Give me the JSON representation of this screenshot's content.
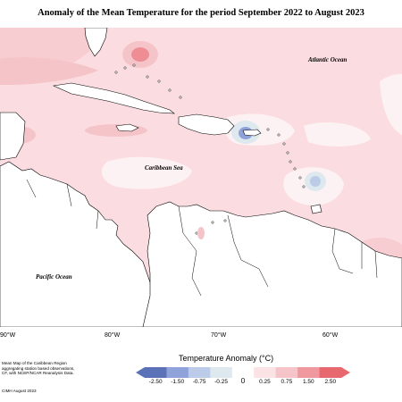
{
  "title": "Anomaly of the Mean Temperature for the period September 2022 to August 2023",
  "map_labels": {
    "atlantic": "Atlantic Ocean",
    "caribbean": "Caribbean Sea",
    "pacific": "Pacific Ocean"
  },
  "longitude_labels": [
    "90°W",
    "80°W",
    "70°W",
    "60°W"
  ],
  "notes": {
    "line1": "Mean Map of the Caribbean Region",
    "line2": "aggregating station based observations,",
    "line3": "CF, with NCEP/NCAR Reanalysis Data."
  },
  "stamp": "CIMH August 2023",
  "legend": {
    "title": "Temperature Anomaly (°C)",
    "ticks": [
      "-2.50",
      "-1.50",
      "-0.75",
      "-0.25",
      "0",
      "0.25",
      "0.75",
      "1.50",
      "2.50"
    ],
    "colors": [
      "#5b72b8",
      "#8fa3da",
      "#bccbe8",
      "#dde8ef",
      "#ffffff",
      "#fbe2e4",
      "#f5c4c8",
      "#ef999f",
      "#e86870"
    ]
  },
  "colors": {
    "land": "#ffffff",
    "sea_anomaly": "#fbdde1",
    "warm_anomaly": "#f5c4c8",
    "hot_anomaly": "#ee8d93",
    "cool_anomaly": "#bccbe2"
  }
}
